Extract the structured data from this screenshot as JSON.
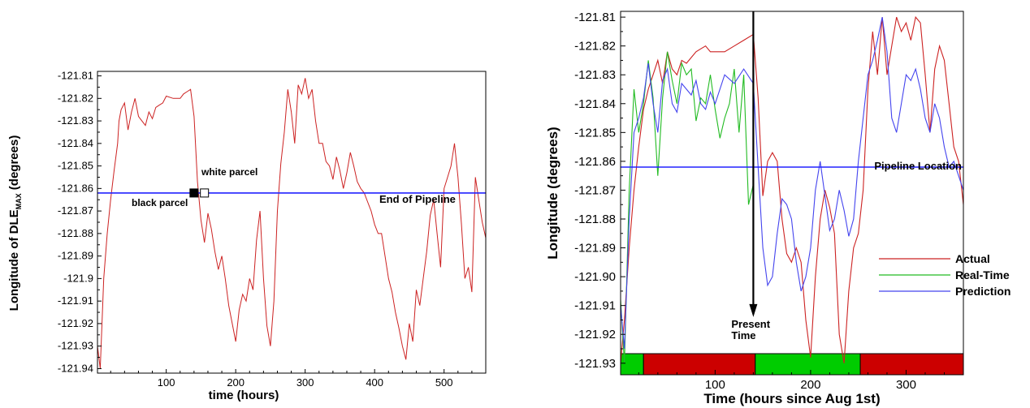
{
  "chart_data": [
    {
      "type": "line",
      "xlabel": "time (hours)",
      "ylabel_main": "Longitude of DLE",
      "ylabel_sub": "MAX",
      "ylabel_tail": " (degrees)",
      "xlim": [
        1,
        560
      ],
      "ylim": [
        -121.942,
        -121.808
      ],
      "x_ticks": [
        100,
        200,
        300,
        400,
        500
      ],
      "x_tick_labels": [
        "100",
        "200",
        "300",
        "400",
        "500"
      ],
      "y_ticks": [
        -121.81,
        -121.82,
        -121.83,
        -121.84,
        -121.85,
        -121.86,
        -121.87,
        -121.88,
        -121.89,
        -121.9,
        -121.91,
        -121.92,
        -121.93,
        -121.94
      ],
      "y_tick_labels": [
        "-121.81",
        "-121.82",
        "-121.83",
        "-121.84",
        "-121.85",
        "-121.86",
        "-121.87",
        "-121.88",
        "-121.89",
        "-121.9",
        "-121.91",
        "-121.92",
        "-121.93",
        "-121.94"
      ],
      "hline": {
        "y": -121.862,
        "label": "End of Pipeline",
        "color": "#2222ff"
      },
      "markers": [
        {
          "label": "black parcel",
          "x": 140,
          "y": -121.862,
          "fill": "#000000"
        },
        {
          "label": "white parcel",
          "x": 155,
          "y": -121.862,
          "fill": "#ffffff"
        }
      ],
      "series": [
        {
          "color": "#cc2222",
          "x": [
            1,
            5,
            10,
            15,
            20,
            25,
            30,
            32,
            35,
            40,
            45,
            50,
            55,
            60,
            65,
            70,
            75,
            80,
            85,
            90,
            95,
            100,
            110,
            115,
            120,
            125,
            130,
            135,
            140,
            145,
            150,
            155,
            160,
            165,
            170,
            175,
            180,
            185,
            190,
            195,
            200,
            205,
            210,
            215,
            220,
            225,
            230,
            235,
            240,
            245,
            250,
            255,
            260,
            265,
            270,
            275,
            280,
            285,
            290,
            295,
            300,
            305,
            310,
            315,
            320,
            325,
            330,
            335,
            340,
            345,
            350,
            355,
            360,
            365,
            370,
            375,
            380,
            385,
            390,
            395,
            400,
            405,
            410,
            415,
            420,
            425,
            430,
            435,
            440,
            445,
            450,
            455,
            460,
            465,
            470,
            475,
            480,
            485,
            490,
            495,
            500,
            505,
            510,
            515,
            520,
            525,
            530,
            535,
            540,
            545,
            550,
            555,
            560
          ],
          "y": [
            -121.93,
            -121.94,
            -121.9,
            -121.88,
            -121.865,
            -121.852,
            -121.84,
            -121.83,
            -121.825,
            -121.822,
            -121.834,
            -121.826,
            -121.82,
            -121.828,
            -121.83,
            -121.832,
            -121.826,
            -121.829,
            -121.824,
            -121.823,
            -121.822,
            -121.819,
            -121.82,
            -121.82,
            -121.82,
            -121.818,
            -121.817,
            -121.816,
            -121.828,
            -121.857,
            -121.874,
            -121.884,
            -121.871,
            -121.878,
            -121.888,
            -121.896,
            -121.89,
            -121.9,
            -121.912,
            -121.92,
            -121.928,
            -121.914,
            -121.907,
            -121.91,
            -121.9,
            -121.905,
            -121.883,
            -121.87,
            -121.9,
            -121.921,
            -121.93,
            -121.91,
            -121.87,
            -121.849,
            -121.835,
            -121.816,
            -121.826,
            -121.84,
            -121.814,
            -121.818,
            -121.811,
            -121.82,
            -121.816,
            -121.83,
            -121.84,
            -121.84,
            -121.848,
            -121.85,
            -121.856,
            -121.846,
            -121.852,
            -121.86,
            -121.853,
            -121.844,
            -121.85,
            -121.857,
            -121.86,
            -121.862,
            -121.866,
            -121.87,
            -121.876,
            -121.88,
            -121.88,
            -121.89,
            -121.9,
            -121.906,
            -121.915,
            -121.922,
            -121.93,
            -121.936,
            -121.92,
            -121.928,
            -121.905,
            -121.912,
            -121.9,
            -121.888,
            -121.872,
            -121.865,
            -121.88,
            -121.895,
            -121.86,
            -121.855,
            -121.85,
            -121.84,
            -121.855,
            -121.876,
            -121.9,
            -121.895,
            -121.906,
            -121.855,
            -121.865,
            -121.875,
            -121.882
          ]
        }
      ]
    },
    {
      "type": "line",
      "xlabel": "Time (hours since Aug 1st)",
      "ylabel": "Longitude (degrees)",
      "xlim": [
        1,
        360
      ],
      "ylim": [
        -121.934,
        -121.808
      ],
      "x_ticks": [
        100,
        200,
        300
      ],
      "x_tick_labels": [
        "100",
        "200",
        "300"
      ],
      "y_ticks": [
        -121.81,
        -121.82,
        -121.83,
        -121.84,
        -121.85,
        -121.86,
        -121.87,
        -121.88,
        -121.89,
        -121.9,
        -121.91,
        -121.92,
        -121.93
      ],
      "y_tick_labels": [
        "-121.81",
        "-121.82",
        "-121.83",
        "-121.84",
        "-121.85",
        "-121.86",
        "-121.87",
        "-121.88",
        "-121.89",
        "-121.90",
        "-121.91",
        "-121.92",
        "-121.93"
      ],
      "hline": {
        "y": -121.862,
        "label": "Pipeline Location",
        "color": "#2222ff"
      },
      "arrow": {
        "x": 140,
        "y_top": -121.808,
        "y_bottom": -121.914,
        "label_line1": "Present",
        "label_line2": "Time"
      },
      "status_bar": [
        {
          "from": 1,
          "to": 25,
          "color": "#00cc00"
        },
        {
          "from": 25,
          "to": 142,
          "color": "#cc0000"
        },
        {
          "from": 142,
          "to": 252,
          "color": "#00cc00"
        },
        {
          "from": 252,
          "to": 360,
          "color": "#cc0000"
        }
      ],
      "legend_position": "right",
      "series": [
        {
          "name": "Actual",
          "color": "#cc2222",
          "x": [
            1,
            5,
            10,
            15,
            20,
            25,
            30,
            35,
            40,
            45,
            50,
            55,
            60,
            65,
            70,
            75,
            80,
            85,
            90,
            95,
            100,
            110,
            120,
            130,
            140,
            145,
            150,
            155,
            160,
            165,
            170,
            175,
            180,
            185,
            190,
            195,
            200,
            205,
            210,
            215,
            220,
            225,
            230,
            235,
            240,
            245,
            250,
            255,
            260,
            265,
            270,
            275,
            280,
            285,
            290,
            295,
            300,
            305,
            310,
            315,
            320,
            325,
            330,
            335,
            340,
            345,
            350,
            355,
            360
          ],
          "y": [
            -121.93,
            -121.915,
            -121.89,
            -121.87,
            -121.855,
            -121.842,
            -121.835,
            -121.83,
            -121.825,
            -121.833,
            -121.822,
            -121.828,
            -121.83,
            -121.825,
            -121.826,
            -121.824,
            -121.822,
            -121.821,
            -121.82,
            -121.822,
            -121.822,
            -121.822,
            -121.82,
            -121.818,
            -121.816,
            -121.838,
            -121.872,
            -121.86,
            -121.857,
            -121.86,
            -121.88,
            -121.892,
            -121.895,
            -121.89,
            -121.895,
            -121.915,
            -121.928,
            -121.9,
            -121.88,
            -121.87,
            -121.876,
            -121.885,
            -121.92,
            -121.93,
            -121.905,
            -121.89,
            -121.885,
            -121.87,
            -121.835,
            -121.815,
            -121.83,
            -121.81,
            -121.83,
            -121.82,
            -121.81,
            -121.815,
            -121.812,
            -121.818,
            -121.81,
            -121.812,
            -121.83,
            -121.85,
            -121.828,
            -121.82,
            -121.825,
            -121.84,
            -121.855,
            -121.86,
            -121.875
          ]
        },
        {
          "name": "Real-Time",
          "color": "#22bb22",
          "x": [
            1,
            5,
            10,
            15,
            20,
            25,
            30,
            35,
            40,
            45,
            50,
            55,
            60,
            65,
            70,
            75,
            80,
            85,
            90,
            95,
            100,
            105,
            110,
            115,
            120,
            125,
            130,
            135,
            140
          ],
          "y": [
            -121.908,
            -121.93,
            -121.87,
            -121.835,
            -121.85,
            -121.84,
            -121.825,
            -121.838,
            -121.865,
            -121.838,
            -121.822,
            -121.832,
            -121.84,
            -121.826,
            -121.83,
            -121.828,
            -121.846,
            -121.838,
            -121.84,
            -121.83,
            -121.842,
            -121.852,
            -121.845,
            -121.84,
            -121.828,
            -121.85,
            -121.83,
            -121.875,
            -121.868
          ]
        },
        {
          "name": "Prediction",
          "color": "#4444ee",
          "x": [
            1,
            5,
            10,
            15,
            20,
            25,
            30,
            35,
            40,
            45,
            50,
            55,
            60,
            65,
            70,
            75,
            80,
            85,
            90,
            95,
            100,
            110,
            120,
            130,
            140,
            145,
            150,
            155,
            160,
            165,
            170,
            175,
            180,
            185,
            190,
            195,
            200,
            205,
            210,
            215,
            220,
            225,
            230,
            235,
            240,
            245,
            250,
            255,
            260,
            265,
            270,
            275,
            280,
            285,
            290,
            295,
            300,
            305,
            310,
            315,
            320,
            325,
            330,
            335,
            340,
            345,
            350,
            355,
            360
          ],
          "y": [
            -121.91,
            -121.925,
            -121.88,
            -121.85,
            -121.845,
            -121.838,
            -121.826,
            -121.84,
            -121.85,
            -121.832,
            -121.828,
            -121.84,
            -121.843,
            -121.833,
            -121.835,
            -121.837,
            -121.832,
            -121.84,
            -121.842,
            -121.836,
            -121.84,
            -121.83,
            -121.833,
            -121.828,
            -121.833,
            -121.862,
            -121.89,
            -121.903,
            -121.9,
            -121.885,
            -121.873,
            -121.875,
            -121.88,
            -121.895,
            -121.905,
            -121.9,
            -121.89,
            -121.87,
            -121.86,
            -121.872,
            -121.884,
            -121.88,
            -121.87,
            -121.877,
            -121.886,
            -121.88,
            -121.86,
            -121.845,
            -121.83,
            -121.825,
            -121.818,
            -121.81,
            -121.822,
            -121.845,
            -121.85,
            -121.84,
            -121.83,
            -121.832,
            -121.828,
            -121.835,
            -121.845,
            -121.85,
            -121.84,
            -121.845,
            -121.855,
            -121.862,
            -121.86,
            -121.865,
            -121.87
          ]
        }
      ]
    }
  ]
}
